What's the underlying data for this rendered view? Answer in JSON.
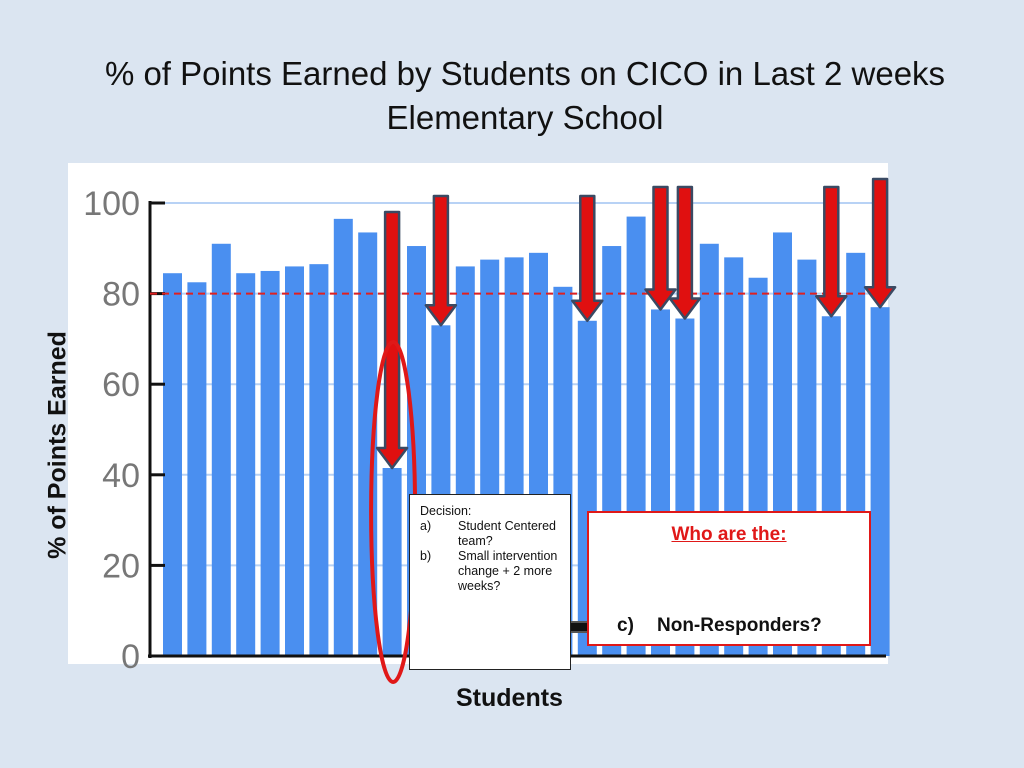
{
  "title": {
    "line1": "% of Points Earned by Students on CICO in Last 2 weeks",
    "line2": "Elementary School"
  },
  "chart_data": {
    "type": "bar",
    "ylabel": "% of Points Earned",
    "xlabel": "Students",
    "ylim": [
      0,
      100
    ],
    "yticks": [
      "0",
      "20",
      "40",
      "60",
      "80",
      "100"
    ],
    "grid": true,
    "values": [
      84.5,
      82.5,
      91,
      84.5,
      85,
      86,
      86.5,
      96.5,
      93.5,
      41.5,
      90.5,
      73,
      86,
      87.5,
      88,
      89,
      81.5,
      74,
      90.5,
      97,
      76.5,
      74.5,
      91,
      88,
      83.5,
      93.5,
      87.5,
      75,
      89,
      77
    ],
    "reference_line": 80,
    "arrow_indices": [
      9,
      11,
      17,
      20,
      21,
      27,
      29
    ],
    "circled_index": 9,
    "colors": {
      "bar": "#4a8ff0",
      "gridline": "#b8d2f5",
      "reference": "#e02020",
      "arrow": "#e01010"
    }
  },
  "decision": {
    "header": "Decision:",
    "items": [
      {
        "marker": "a)",
        "text": "Student Centered team?"
      },
      {
        "marker": "b)",
        "text": "Small intervention change + 2 more weeks?"
      }
    ]
  },
  "who_box": {
    "title": "Who are the:",
    "item_marker": "c)",
    "item_text": "Non-Responders?"
  }
}
